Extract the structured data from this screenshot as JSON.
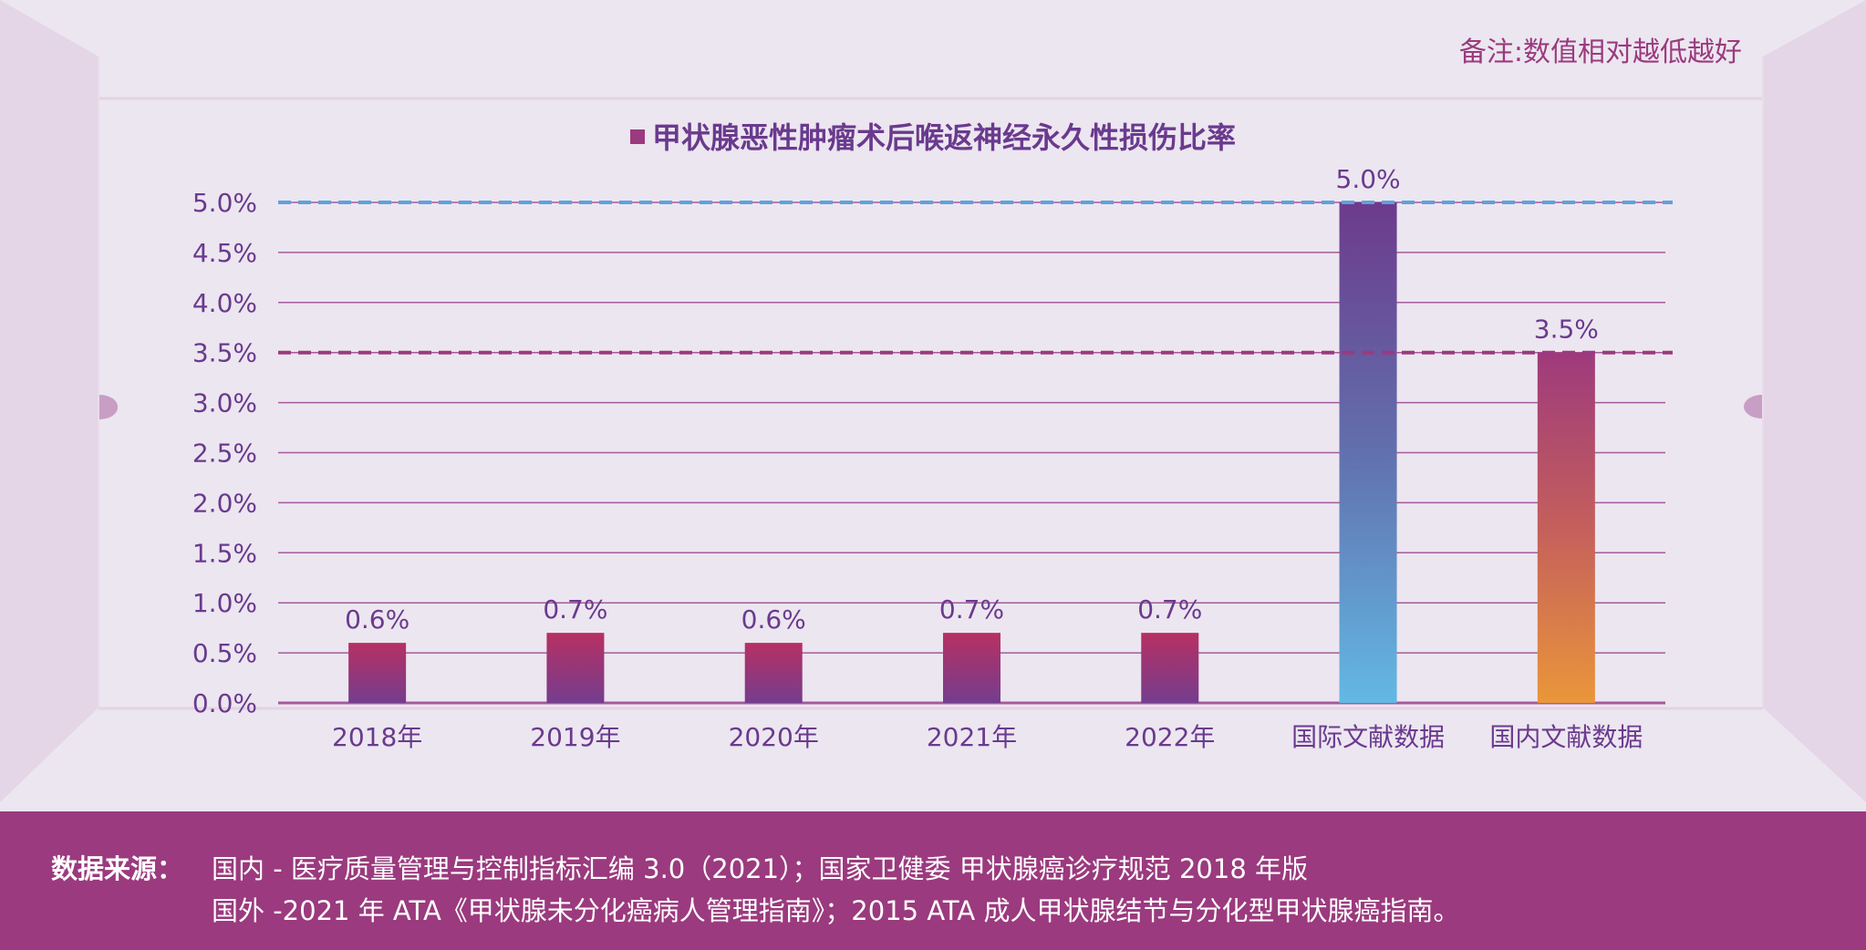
{
  "note": "备注:数值相对越低越好",
  "colors": {
    "background": "#ece6f0",
    "side_panel": "#e4d6e6",
    "accent": "#9b3a7e",
    "text": "#6a3a8e",
    "grid": "#a55a9c",
    "ref_line_intl": "#5ba3dc",
    "ref_line_domestic": "#9b3a7e",
    "bar_year_top": "#b73063",
    "bar_year_bottom": "#743d8e",
    "bar_intl_top": "#6d3a8c",
    "bar_intl_bottom": "#63b8e4",
    "bar_dom_top": "#9e3a7c",
    "bar_dom_bottom": "#ea963a"
  },
  "chart_data": {
    "type": "bar",
    "title": "",
    "legend": [
      "甲状腺恶性肿瘤术后喉返神经永久性损伤比率"
    ],
    "legend_position": "top",
    "categories": [
      "2018年",
      "2019年",
      "2020年",
      "2021年",
      "2022年",
      "国际文献数据",
      "国内文献数据"
    ],
    "series": [
      {
        "name": "甲状腺恶性肿瘤术后喉返神经永久性损伤比率",
        "values": [
          0.6,
          0.7,
          0.6,
          0.7,
          0.7,
          5.0,
          3.5
        ],
        "labels": [
          "0.6%",
          "0.7%",
          "0.6%",
          "0.7%",
          "0.7%",
          "5.0%",
          "3.5%"
        ]
      }
    ],
    "reference_lines": [
      {
        "value": 5.0,
        "style": "dashed",
        "color": "#5ba3dc"
      },
      {
        "value": 3.5,
        "style": "dashed",
        "color": "#9b3a7e"
      }
    ],
    "xlabel": "",
    "ylabel": "",
    "ylim": [
      0,
      5.0
    ],
    "yticks": [
      0,
      0.5,
      1.0,
      1.5,
      2.0,
      2.5,
      3.0,
      3.5,
      4.0,
      4.5,
      5.0
    ],
    "ytick_labels": [
      "0.0%",
      "0.5%",
      "1.0%",
      "1.5%",
      "2.0%",
      "2.5%",
      "3.0%",
      "3.5%",
      "4.0%",
      "4.5%",
      "5.0%"
    ],
    "grid": true
  },
  "footer": {
    "label": "数据来源：",
    "line1": "国内 - 医疗质量管理与控制指标汇编 3.0（2021）；国家卫健委 甲状腺癌诊疗规范 2018 年版",
    "line2": "国外 -2021 年 ATA《甲状腺未分化癌病人管理指南》；2015 ATA 成人甲状腺结节与分化型甲状腺癌指南。"
  }
}
